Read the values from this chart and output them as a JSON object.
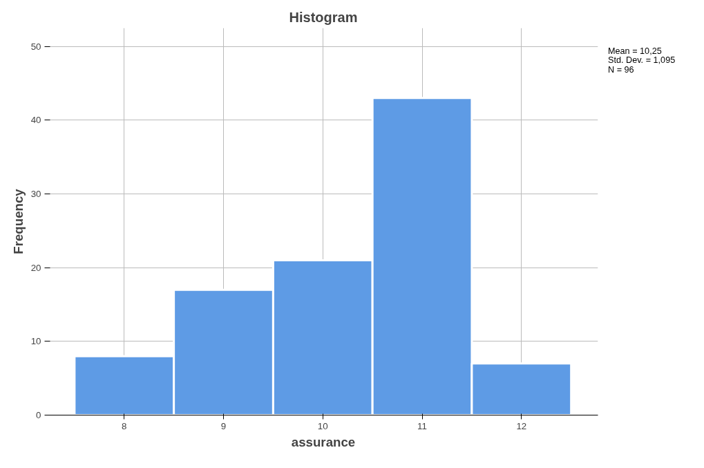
{
  "chart_data": {
    "type": "histogram",
    "title": "Histogram",
    "xlabel": "assurance",
    "ylabel": "Frequency",
    "bins": [
      7.5,
      8.5,
      9.5,
      10.5,
      11.5,
      12.5
    ],
    "values": [
      8,
      17,
      21,
      43,
      7
    ],
    "color": "#5e9be5",
    "xlim": [
      7.24,
      12.77
    ],
    "xticks": [
      8,
      9,
      10,
      11,
      12
    ],
    "ylim": [
      0,
      52.5
    ],
    "yticks": [
      0,
      10,
      20,
      30,
      40,
      50
    ],
    "grid": true,
    "annotations": [
      "Mean = 10,25",
      "Std. Dev. = 1,095",
      "N = 96"
    ]
  }
}
